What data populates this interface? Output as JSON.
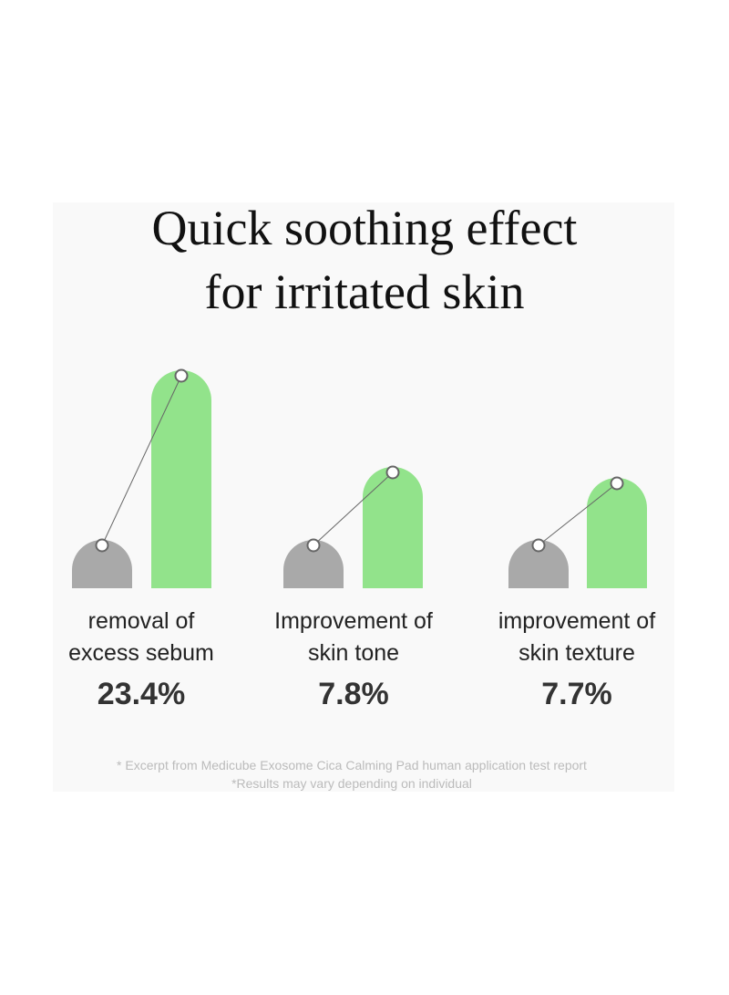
{
  "title": {
    "lines": [
      "Quick soothing effect",
      "for irritated skin"
    ]
  },
  "items": [
    {
      "label": [
        "removal of",
        "excess sebum"
      ],
      "value": "23.4%"
    },
    {
      "label": [
        "Improvement of",
        "skin tone"
      ],
      "value": "7.8%"
    },
    {
      "label": [
        "improvement of",
        "skin texture"
      ],
      "value": "7.7%"
    }
  ],
  "footnote": [
    "* Excerpt from Medicube Exosome Cica Calming Pad human application test report",
    "*Results may vary depending on individual"
  ]
}
